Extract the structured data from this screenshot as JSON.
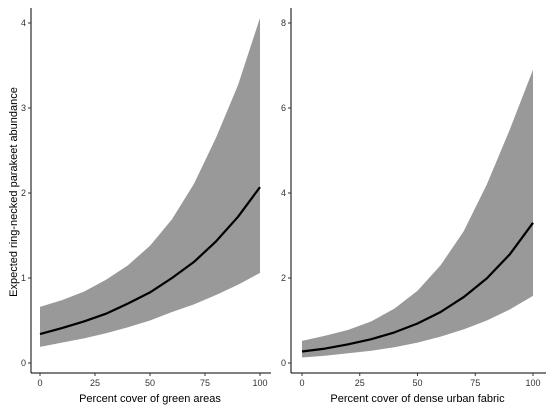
{
  "ylabel": "Expected ring-necked parakeet abundance",
  "colors": {
    "ribbon": "#999999",
    "line": "#000000",
    "axis": "#000000"
  },
  "chart_data": [
    {
      "type": "line",
      "xlabel": "Percent cover of green areas",
      "xlim": [
        0,
        100
      ],
      "ylim": [
        0,
        4
      ],
      "xticks": [
        0,
        25,
        50,
        75,
        100
      ],
      "yticks": [
        0,
        1,
        2,
        3,
        4
      ],
      "grid": false,
      "series": [
        {
          "x": [
            0,
            10,
            20,
            30,
            40,
            50,
            60,
            70,
            80,
            90,
            100
          ],
          "y": [
            0.34,
            0.41,
            0.49,
            0.58,
            0.7,
            0.83,
            1.0,
            1.19,
            1.43,
            1.72,
            2.07
          ],
          "lower": [
            0.19,
            0.24,
            0.29,
            0.35,
            0.42,
            0.5,
            0.6,
            0.69,
            0.8,
            0.92,
            1.06
          ],
          "upper": [
            0.66,
            0.74,
            0.84,
            0.98,
            1.15,
            1.38,
            1.69,
            2.11,
            2.65,
            3.27,
            4.06
          ]
        }
      ]
    },
    {
      "type": "line",
      "xlabel": "Percent cover of dense urban fabric",
      "xlim": [
        0,
        100
      ],
      "ylim": [
        0,
        8
      ],
      "xticks": [
        0,
        25,
        50,
        75,
        100
      ],
      "yticks": [
        0,
        2,
        4,
        6,
        8
      ],
      "grid": false,
      "series": [
        {
          "x": [
            0,
            10,
            20,
            30,
            40,
            50,
            60,
            70,
            80,
            90,
            100
          ],
          "y": [
            0.27,
            0.34,
            0.44,
            0.56,
            0.72,
            0.93,
            1.2,
            1.55,
            1.99,
            2.56,
            3.3
          ],
          "lower": [
            0.13,
            0.17,
            0.23,
            0.29,
            0.37,
            0.48,
            0.62,
            0.79,
            1.0,
            1.26,
            1.58
          ],
          "upper": [
            0.52,
            0.64,
            0.78,
            0.98,
            1.28,
            1.7,
            2.3,
            3.1,
            4.2,
            5.5,
            6.9
          ]
        }
      ]
    }
  ]
}
